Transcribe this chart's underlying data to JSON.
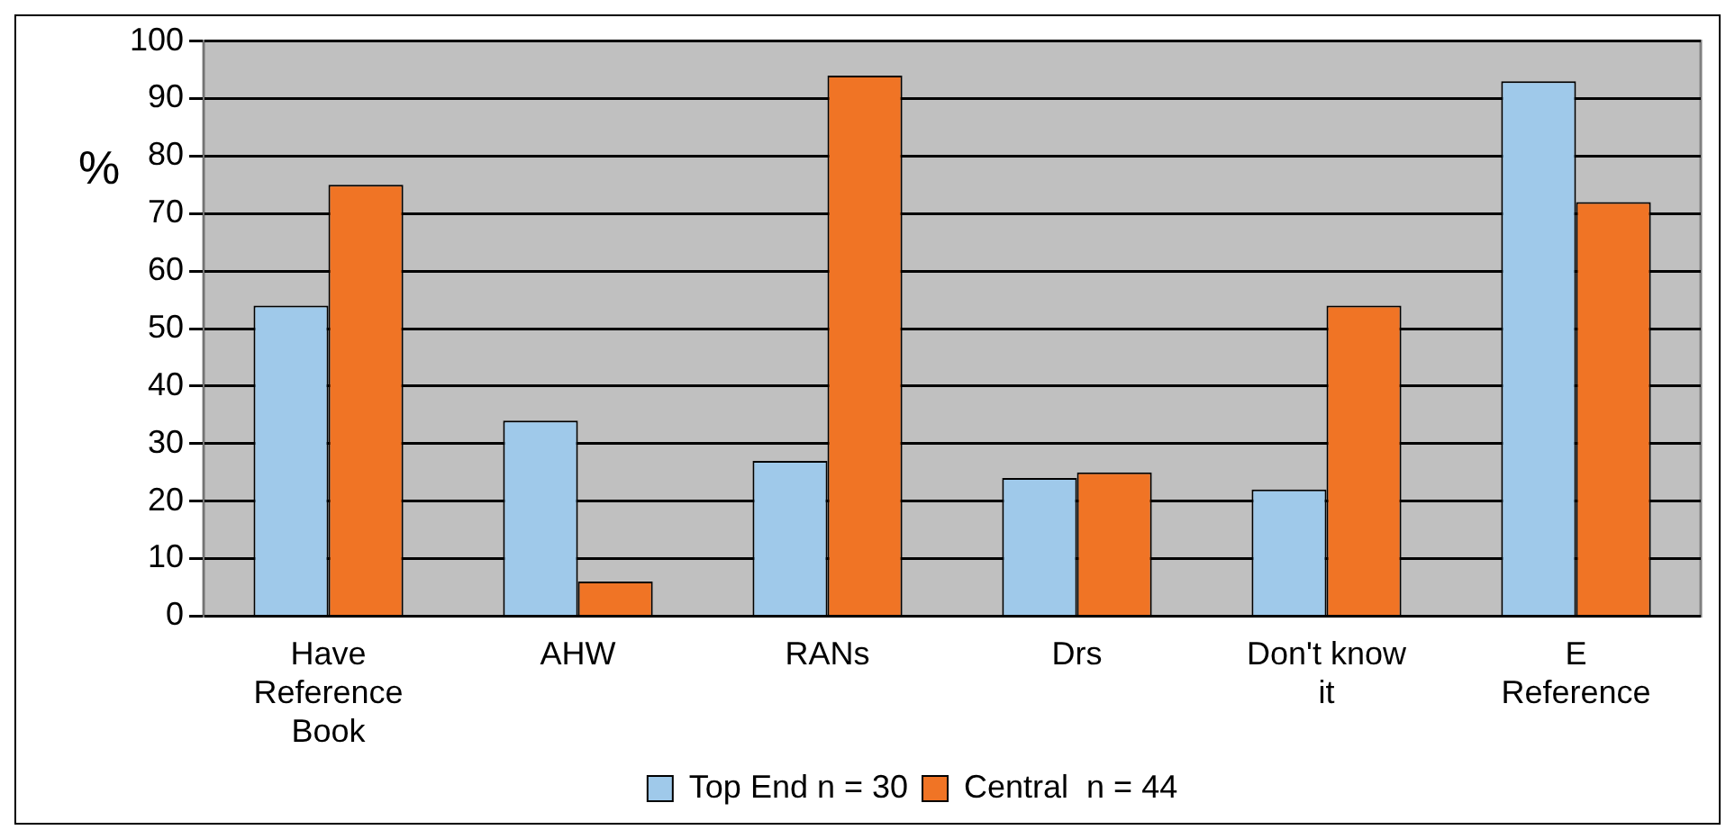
{
  "chart_data": {
    "type": "bar",
    "ylabel": "%",
    "categories": [
      "Have Reference Book",
      "AHW",
      "RANs",
      "Drs",
      "Don't know it",
      "E Reference"
    ],
    "series": [
      {
        "name": "Top End n = 30",
        "color": "#9fc9ea",
        "values": [
          54,
          34,
          27,
          24,
          22,
          93
        ]
      },
      {
        "name": "Central  n = 44",
        "color": "#f07425",
        "values": [
          75,
          6,
          94,
          25,
          54,
          72
        ]
      }
    ],
    "ylim": [
      0,
      100
    ],
    "yticks": [
      0,
      10,
      20,
      30,
      40,
      50,
      60,
      70,
      80,
      90,
      100
    ],
    "grid": "y",
    "legend": "bottom"
  }
}
